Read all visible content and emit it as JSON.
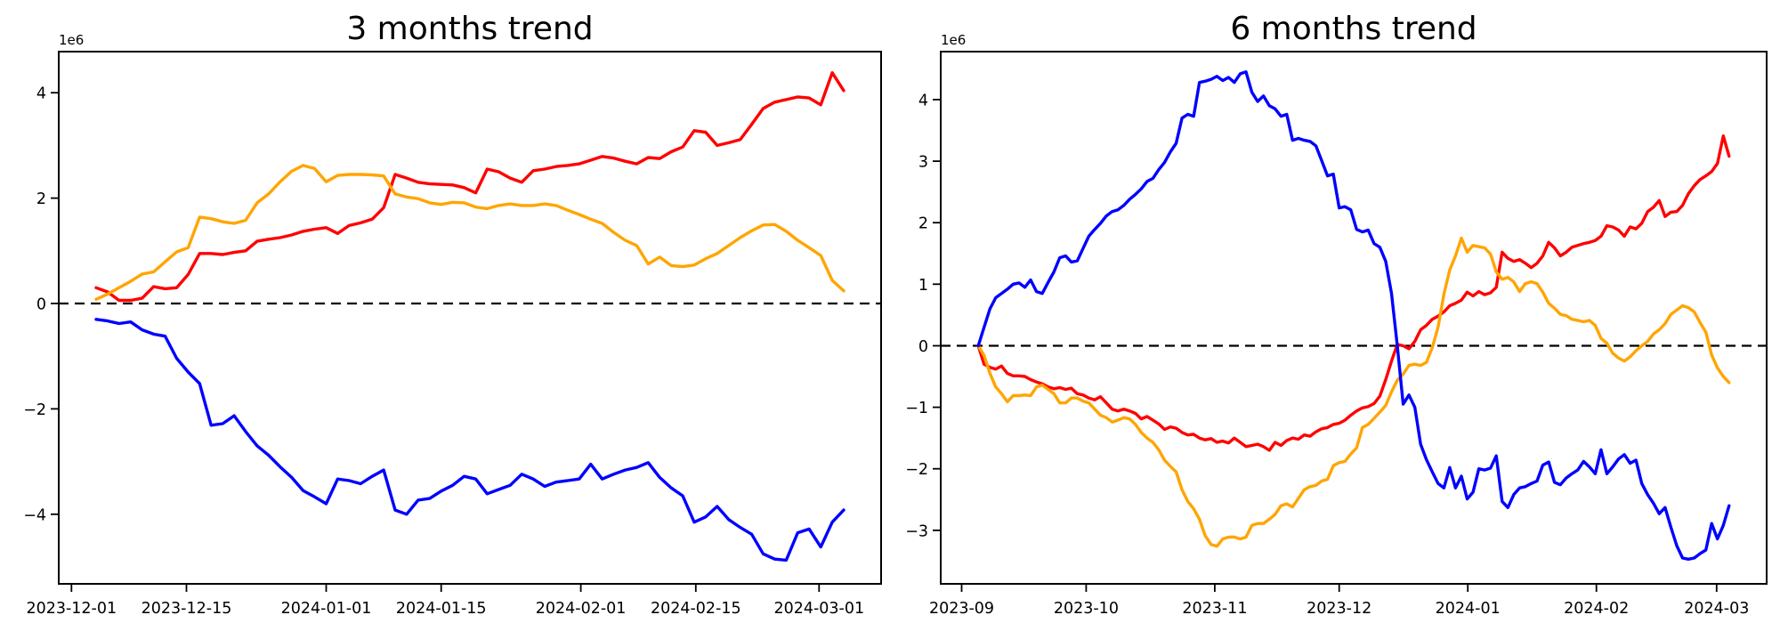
{
  "page": {
    "background": "#ffffff"
  },
  "chart_data": [
    {
      "type": "line",
      "title": "3 months trend",
      "offset_label": "1e6",
      "value_unit": 1000000,
      "x_start": "2023-12-04",
      "x_end": "2024-03-04",
      "x_span_days": 91,
      "ylim": [
        -5.32,
        4.78
      ],
      "yticks": [
        4,
        2,
        0,
        -2,
        -4
      ],
      "xticks": [
        {
          "label": "2023-12-01",
          "day": -3
        },
        {
          "label": "2023-12-15",
          "day": 11
        },
        {
          "label": "2024-01-01",
          "day": 28
        },
        {
          "label": "2024-01-15",
          "day": 42
        },
        {
          "label": "2024-02-01",
          "day": 59
        },
        {
          "label": "2024-02-15",
          "day": 73
        },
        {
          "label": "2024-03-01",
          "day": 88
        }
      ],
      "zero_line": true,
      "grid": false,
      "legend": null,
      "series": [
        {
          "name": "red",
          "color": "#ff0000",
          "values": [
            0.3,
            0.22,
            0.06,
            0.06,
            0.1,
            0.32,
            0.28,
            0.3,
            0.55,
            0.95,
            0.95,
            0.93,
            0.97,
            1.0,
            1.18,
            1.22,
            1.25,
            1.3,
            1.37,
            1.41,
            1.44,
            1.33,
            1.48,
            1.53,
            1.6,
            1.82,
            2.45,
            2.38,
            2.3,
            2.27,
            2.26,
            2.25,
            2.2,
            2.1,
            2.55,
            2.5,
            2.38,
            2.3,
            2.52,
            2.55,
            2.6,
            2.62,
            2.65,
            2.72,
            2.79,
            2.76,
            2.7,
            2.65,
            2.77,
            2.75,
            2.88,
            2.97,
            3.28,
            3.25,
            3.0,
            3.05,
            3.11,
            3.4,
            3.7,
            3.82,
            3.87,
            3.92,
            3.9,
            3.77,
            4.38,
            4.04
          ]
        },
        {
          "name": "orange",
          "color": "#ffa500",
          "values": [
            0.08,
            0.18,
            0.3,
            0.42,
            0.56,
            0.6,
            0.79,
            0.98,
            1.06,
            1.64,
            1.61,
            1.55,
            1.52,
            1.58,
            1.91,
            2.08,
            2.31,
            2.51,
            2.62,
            2.56,
            2.31,
            2.43,
            2.45,
            2.45,
            2.44,
            2.42,
            2.08,
            2.02,
            1.99,
            1.91,
            1.88,
            1.92,
            1.91,
            1.83,
            1.8,
            1.86,
            1.89,
            1.86,
            1.86,
            1.89,
            1.86,
            1.77,
            1.69,
            1.6,
            1.52,
            1.35,
            1.2,
            1.1,
            0.75,
            0.88,
            0.72,
            0.7,
            0.73,
            0.85,
            0.95,
            1.1,
            1.25,
            1.38,
            1.49,
            1.5,
            1.37,
            1.2,
            1.06,
            0.91,
            0.44,
            0.24
          ]
        },
        {
          "name": "blue",
          "color": "#0000ff",
          "values": [
            -0.3,
            -0.33,
            -0.38,
            -0.35,
            -0.5,
            -0.58,
            -0.62,
            -1.04,
            -1.3,
            -1.52,
            -2.31,
            -2.28,
            -2.13,
            -2.43,
            -2.7,
            -2.88,
            -3.1,
            -3.3,
            -3.55,
            -3.67,
            -3.8,
            -3.33,
            -3.36,
            -3.42,
            -3.28,
            -3.16,
            -3.92,
            -4.0,
            -3.73,
            -3.7,
            -3.56,
            -3.45,
            -3.28,
            -3.33,
            -3.61,
            -3.53,
            -3.45,
            -3.24,
            -3.33,
            -3.47,
            -3.39,
            -3.36,
            -3.33,
            -3.05,
            -3.33,
            -3.24,
            -3.16,
            -3.11,
            -3.02,
            -3.3,
            -3.5,
            -3.65,
            -4.15,
            -4.05,
            -3.85,
            -4.1,
            -4.25,
            -4.38,
            -4.75,
            -4.85,
            -4.87,
            -4.35,
            -4.28,
            -4.62,
            -4.15,
            -3.92
          ]
        }
      ]
    },
    {
      "type": "line",
      "title": "6 months trend",
      "offset_label": "1e6",
      "value_unit": 1000000,
      "x_start": "2023-09-05",
      "x_end": "2024-03-04",
      "x_span_days": 181,
      "ylim": [
        -3.87,
        4.78
      ],
      "yticks": [
        4,
        3,
        2,
        1,
        0,
        -1,
        -2,
        -3
      ],
      "xticks": [
        {
          "label": "2023-09",
          "day": -4
        },
        {
          "label": "2023-10",
          "day": 26
        },
        {
          "label": "2023-11",
          "day": 57
        },
        {
          "label": "2023-12",
          "day": 87
        },
        {
          "label": "2024-01",
          "day": 118
        },
        {
          "label": "2024-02",
          "day": 149
        },
        {
          "label": "2024-03",
          "day": 178
        }
      ],
      "zero_line": true,
      "grid": false,
      "legend": null,
      "series": [
        {
          "name": "red",
          "color": "#ff0000",
          "values": [
            0.0,
            -0.3,
            -0.35,
            -0.38,
            -0.33,
            -0.45,
            -0.49,
            -0.49,
            -0.5,
            -0.55,
            -0.59,
            -0.62,
            -0.67,
            -0.7,
            -0.68,
            -0.71,
            -0.69,
            -0.78,
            -0.8,
            -0.85,
            -0.88,
            -0.83,
            -0.93,
            -1.03,
            -1.06,
            -1.03,
            -1.06,
            -1.1,
            -1.19,
            -1.15,
            -1.21,
            -1.27,
            -1.36,
            -1.32,
            -1.34,
            -1.41,
            -1.45,
            -1.44,
            -1.5,
            -1.53,
            -1.51,
            -1.57,
            -1.55,
            -1.58,
            -1.5,
            -1.57,
            -1.64,
            -1.62,
            -1.6,
            -1.64,
            -1.7,
            -1.57,
            -1.62,
            -1.54,
            -1.5,
            -1.52,
            -1.45,
            -1.47,
            -1.4,
            -1.35,
            -1.33,
            -1.28,
            -1.26,
            -1.21,
            -1.13,
            -1.06,
            -1.01,
            -0.99,
            -0.94,
            -0.82,
            -0.55,
            -0.25,
            0.02,
            0.0,
            -0.05,
            0.07,
            0.26,
            0.33,
            0.43,
            0.48,
            0.55,
            0.65,
            0.69,
            0.74,
            0.87,
            0.81,
            0.88,
            0.83,
            0.86,
            0.95,
            1.52,
            1.42,
            1.37,
            1.4,
            1.34,
            1.27,
            1.34,
            1.46,
            1.68,
            1.59,
            1.46,
            1.52,
            1.6,
            1.63,
            1.66,
            1.68,
            1.71,
            1.78,
            1.95,
            1.93,
            1.88,
            1.78,
            1.93,
            1.9,
            1.99,
            2.18,
            2.25,
            2.36,
            2.1,
            2.17,
            2.18,
            2.28,
            2.47,
            2.6,
            2.7,
            2.76,
            2.83,
            2.96,
            3.41,
            3.08
          ]
        },
        {
          "name": "orange",
          "color": "#ffa500",
          "values": [
            0.0,
            -0.16,
            -0.45,
            -0.67,
            -0.78,
            -0.91,
            -0.81,
            -0.81,
            -0.8,
            -0.81,
            -0.67,
            -0.64,
            -0.71,
            -0.78,
            -0.93,
            -0.93,
            -0.85,
            -0.85,
            -0.9,
            -0.93,
            -1.03,
            -1.13,
            -1.17,
            -1.24,
            -1.21,
            -1.17,
            -1.19,
            -1.28,
            -1.41,
            -1.5,
            -1.57,
            -1.69,
            -1.86,
            -1.96,
            -2.05,
            -2.34,
            -2.53,
            -2.65,
            -2.82,
            -3.09,
            -3.23,
            -3.26,
            -3.14,
            -3.11,
            -3.11,
            -3.14,
            -3.11,
            -2.92,
            -2.89,
            -2.89,
            -2.82,
            -2.74,
            -2.6,
            -2.57,
            -2.62,
            -2.48,
            -2.34,
            -2.29,
            -2.27,
            -2.2,
            -2.17,
            -1.95,
            -1.9,
            -1.88,
            -1.76,
            -1.66,
            -1.33,
            -1.28,
            -1.18,
            -1.08,
            -0.97,
            -0.75,
            -0.56,
            -0.46,
            -0.32,
            -0.3,
            -0.32,
            -0.27,
            -0.03,
            0.3,
            0.84,
            1.23,
            1.46,
            1.75,
            1.52,
            1.63,
            1.61,
            1.59,
            1.49,
            1.2,
            1.08,
            1.11,
            1.04,
            0.88,
            1.01,
            1.04,
            1.01,
            0.87,
            0.69,
            0.61,
            0.51,
            0.49,
            0.43,
            0.41,
            0.39,
            0.41,
            0.33,
            0.12,
            0.04,
            -0.12,
            -0.2,
            -0.25,
            -0.18,
            -0.08,
            0.0,
            0.07,
            0.19,
            0.26,
            0.36,
            0.51,
            0.58,
            0.65,
            0.62,
            0.55,
            0.38,
            0.22,
            -0.15,
            -0.36,
            -0.5,
            -0.6
          ]
        },
        {
          "name": "blue",
          "color": "#0000ff",
          "values": [
            0.0,
            0.3,
            0.6,
            0.78,
            0.85,
            0.92,
            1.0,
            1.02,
            0.95,
            1.07,
            0.88,
            0.85,
            1.03,
            1.2,
            1.43,
            1.46,
            1.36,
            1.38,
            1.58,
            1.78,
            1.89,
            1.99,
            2.11,
            2.18,
            2.21,
            2.28,
            2.38,
            2.46,
            2.55,
            2.67,
            2.72,
            2.86,
            2.98,
            3.15,
            3.29,
            3.7,
            3.76,
            3.73,
            4.28,
            4.3,
            4.33,
            4.38,
            4.31,
            4.36,
            4.28,
            4.42,
            4.45,
            4.12,
            3.97,
            4.06,
            3.9,
            3.85,
            3.73,
            3.76,
            3.34,
            3.37,
            3.34,
            3.32,
            3.25,
            3.01,
            2.76,
            2.79,
            2.24,
            2.26,
            2.21,
            1.89,
            1.85,
            1.88,
            1.66,
            1.6,
            1.37,
            0.85,
            0.0,
            -0.95,
            -0.8,
            -1.0,
            -1.6,
            -1.85,
            -2.05,
            -2.24,
            -2.31,
            -1.98,
            -2.31,
            -2.12,
            -2.49,
            -2.38,
            -2.0,
            -2.02,
            -1.99,
            -1.79,
            -2.53,
            -2.63,
            -2.42,
            -2.31,
            -2.29,
            -2.24,
            -2.2,
            -1.94,
            -1.89,
            -2.22,
            -2.26,
            -2.15,
            -2.08,
            -2.02,
            -1.88,
            -1.97,
            -2.08,
            -1.69,
            -2.08,
            -1.97,
            -1.84,
            -1.77,
            -1.91,
            -1.86,
            -2.24,
            -2.42,
            -2.56,
            -2.73,
            -2.63,
            -2.95,
            -3.25,
            -3.45,
            -3.47,
            -3.45,
            -3.38,
            -3.32,
            -2.89,
            -3.14,
            -2.92,
            -2.6
          ]
        }
      ]
    }
  ]
}
